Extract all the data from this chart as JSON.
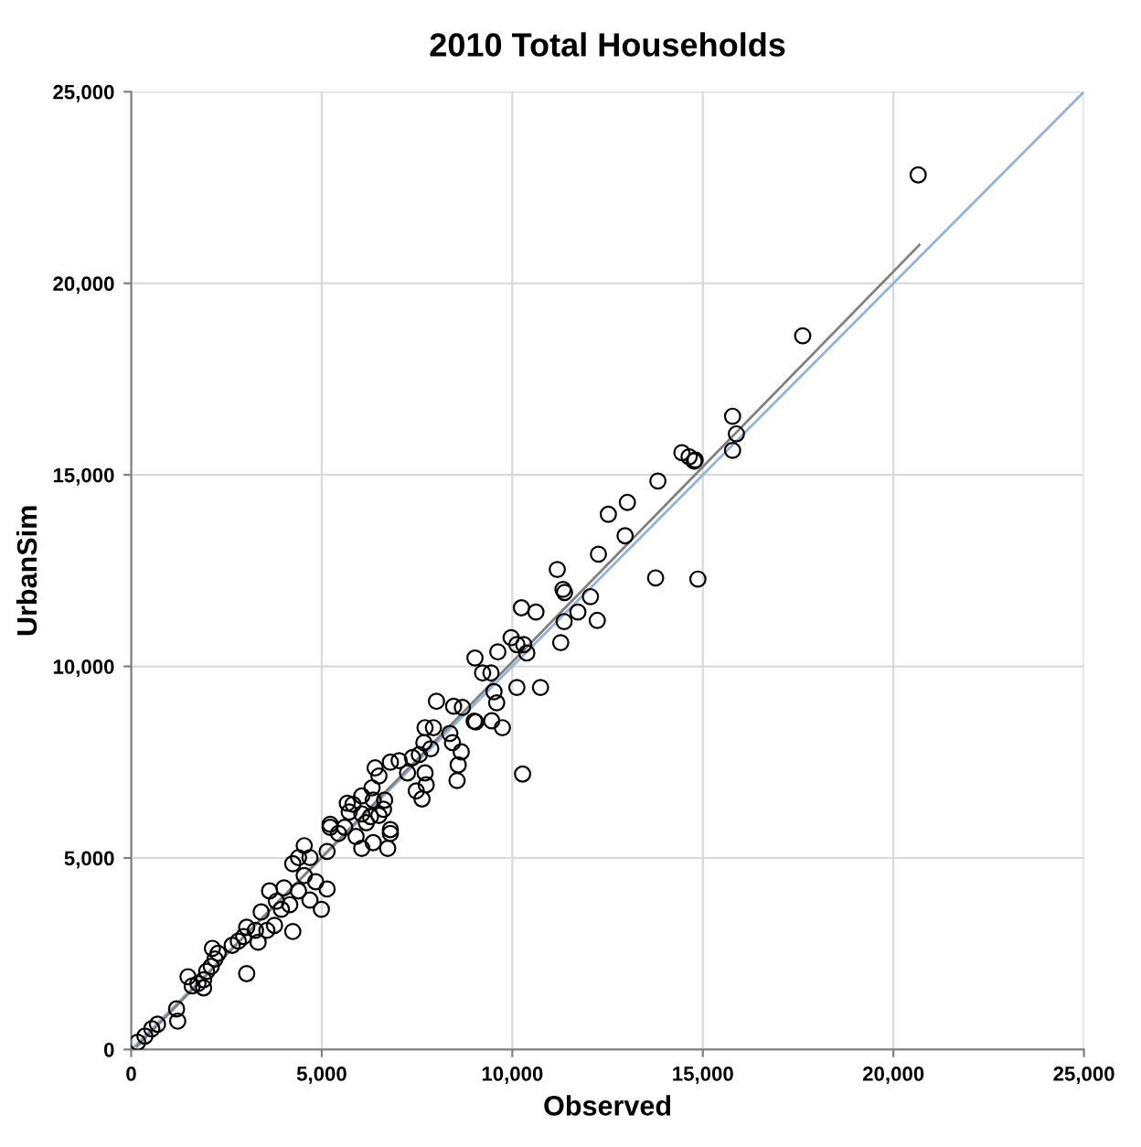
{
  "chart_data": {
    "type": "scatter",
    "title": "2010 Total Households",
    "xlabel": "Observed",
    "ylabel": "UrbanSim",
    "xlim": [
      0,
      25000
    ],
    "ylim": [
      0,
      25000
    ],
    "xticks": [
      {
        "value": 0,
        "label": "0"
      },
      {
        "value": 5000,
        "label": "5,000"
      },
      {
        "value": 10000,
        "label": "10,000"
      },
      {
        "value": 15000,
        "label": "15,000"
      },
      {
        "value": 20000,
        "label": "20,000"
      },
      {
        "value": 25000,
        "label": "25,000"
      }
    ],
    "yticks": [
      {
        "value": 0,
        "label": "0"
      },
      {
        "value": 5000,
        "label": "5,000"
      },
      {
        "value": 10000,
        "label": "10,000"
      },
      {
        "value": 15000,
        "label": "15,000"
      },
      {
        "value": 20000,
        "label": "20,000"
      },
      {
        "value": 25000,
        "label": "25,000"
      }
    ],
    "grid": true,
    "marker": "circle",
    "series": [
      {
        "color": "#000000",
        "x": [
          20650,
          17620,
          15780,
          15880,
          15780,
          14800,
          14870,
          14450,
          14640,
          14770,
          13820,
          13020,
          12520,
          12960,
          12260,
          11180,
          11330,
          11370,
          12050,
          11720,
          10240,
          10620,
          11360,
          12230,
          11270,
          13760,
          9970,
          9620,
          10120,
          10300,
          10380,
          10120,
          10740,
          10270,
          9520,
          9590,
          9460,
          9740,
          9020,
          9040,
          9220,
          9440,
          8010,
          8460,
          8690,
          9000,
          8580,
          8550,
          8360,
          8430,
          8660,
          7710,
          7930,
          7680,
          7860,
          7560,
          7380,
          7030,
          6800,
          6400,
          6500,
          7250,
          7710,
          7740,
          7480,
          7630,
          6320,
          6050,
          6350,
          6650,
          6620,
          5820,
          5720,
          6050,
          6280,
          6500,
          5220,
          5600,
          6170,
          6800,
          170,
          360,
          540,
          690,
          1190,
          1220,
          1490,
          1600,
          1750,
          1900,
          1980,
          2100,
          1900,
          2130,
          2280,
          2200,
          3030,
          2650,
          2810,
          2950,
          3030,
          3330,
          3260,
          3410,
          3560,
          3760,
          3940,
          3810,
          4160,
          4240,
          4010,
          4390,
          4690,
          4990,
          4840,
          4540,
          5140,
          4240,
          4390,
          4690,
          4540,
          5140,
          5220,
          5440,
          5670,
          5900,
          6050,
          6350,
          6730,
          6800,
          3630
        ],
        "values": [
          22830,
          18630,
          16530,
          16070,
          15640,
          15390,
          12280,
          15580,
          15470,
          15360,
          14840,
          14280,
          13970,
          13410,
          12930,
          12530,
          12010,
          11930,
          11820,
          11420,
          11530,
          11420,
          11170,
          11200,
          10620,
          12310,
          10750,
          10380,
          10570,
          10570,
          10350,
          9450,
          9450,
          7190,
          9340,
          9050,
          8580,
          8400,
          10220,
          8550,
          9830,
          9830,
          9090,
          8960,
          8930,
          8570,
          7430,
          7020,
          8250,
          8010,
          7770,
          8400,
          8400,
          8010,
          7850,
          7700,
          7620,
          7540,
          7500,
          7350,
          7140,
          7220,
          7220,
          6910,
          6750,
          6540,
          6830,
          6620,
          6510,
          6510,
          6270,
          6400,
          6200,
          6150,
          6080,
          6110,
          5880,
          5800,
          5920,
          5740,
          190,
          350,
          540,
          660,
          1060,
          740,
          1900,
          1660,
          1720,
          1820,
          2040,
          2170,
          1610,
          2640,
          2510,
          2360,
          1980,
          2720,
          2830,
          2950,
          3190,
          2800,
          3110,
          3590,
          3110,
          3240,
          3660,
          3870,
          3780,
          3080,
          4220,
          4140,
          3900,
          3660,
          4380,
          4540,
          4190,
          4850,
          5010,
          5010,
          5320,
          5170,
          5800,
          5640,
          6430,
          5560,
          5250,
          5400,
          5250,
          5640,
          4140
        ]
      },
      {
        "type": "line",
        "color": "#95b3d7",
        "marker": "none",
        "x": [
          0,
          25000
        ],
        "values": [
          0,
          25000
        ]
      },
      {
        "type": "line",
        "color": "#808080",
        "marker": "none",
        "x": [
          150,
          20680
        ],
        "values": [
          80,
          21000
        ]
      }
    ]
  }
}
